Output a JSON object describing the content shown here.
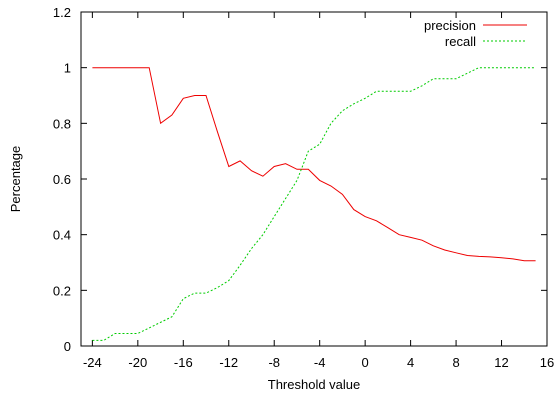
{
  "chart_data": {
    "type": "line",
    "title": "",
    "xlabel": "Threshold value",
    "ylabel": "Percentage",
    "xlim": [
      -25,
      16
    ],
    "ylim": [
      0,
      1.2
    ],
    "xticks": [
      -24,
      -20,
      -16,
      -12,
      -8,
      -4,
      0,
      4,
      8,
      12,
      16
    ],
    "yticks": [
      0,
      0.2,
      0.4,
      0.6,
      0.8,
      1,
      1.2
    ],
    "xtick_labels": [
      "-24",
      "-20",
      "-16",
      "-12",
      "-8",
      "-4",
      "0",
      "4",
      "8",
      "12",
      "16"
    ],
    "ytick_labels": [
      "0",
      "0.2",
      "0.4",
      "0.6",
      "0.8",
      "1",
      "1.2"
    ],
    "legend_position": "top-right",
    "grid": false,
    "series": [
      {
        "name": "precision",
        "color": "#ee0000",
        "style": "solid",
        "x": [
          -24,
          -23,
          -22,
          -21,
          -20,
          -19,
          -18,
          -17,
          -16,
          -15,
          -14,
          -13,
          -12,
          -11,
          -10,
          -9,
          -8,
          -7,
          -6,
          -5,
          -4,
          -3,
          -2,
          -1,
          0,
          1,
          2,
          3,
          4,
          5,
          6,
          7,
          8,
          9,
          10,
          11,
          12,
          13,
          14,
          15
        ],
        "y": [
          1,
          1,
          1,
          1,
          1,
          1,
          0.8,
          0.83,
          0.89,
          0.9,
          0.9,
          0.77,
          0.645,
          0.665,
          0.63,
          0.61,
          0.645,
          0.655,
          0.635,
          0.635,
          0.595,
          0.575,
          0.545,
          0.49,
          0.465,
          0.45,
          0.425,
          0.4,
          0.39,
          0.38,
          0.36,
          0.345,
          0.335,
          0.325,
          0.322,
          0.32,
          0.317,
          0.313,
          0.306,
          0.306
        ]
      },
      {
        "name": "recall",
        "color": "#00cc00",
        "style": "dashed",
        "x": [
          -24,
          -23,
          -22,
          -21,
          -20,
          -19,
          -18,
          -17,
          -16,
          -15,
          -14,
          -13,
          -12,
          -11,
          -10,
          -9,
          -8,
          -7,
          -6,
          -5,
          -4,
          -3,
          -2,
          -1,
          0,
          1,
          2,
          3,
          4,
          5,
          6,
          7,
          8,
          9,
          10,
          11,
          12,
          13,
          14,
          15
        ],
        "y": [
          0.02,
          0.02,
          0.045,
          0.045,
          0.045,
          0.065,
          0.085,
          0.105,
          0.17,
          0.19,
          0.19,
          0.21,
          0.235,
          0.29,
          0.35,
          0.4,
          0.465,
          0.53,
          0.595,
          0.7,
          0.725,
          0.8,
          0.845,
          0.87,
          0.89,
          0.915,
          0.915,
          0.915,
          0.915,
          0.935,
          0.96,
          0.96,
          0.96,
          0.98,
          1,
          1,
          1,
          1,
          1,
          1
        ]
      }
    ]
  }
}
